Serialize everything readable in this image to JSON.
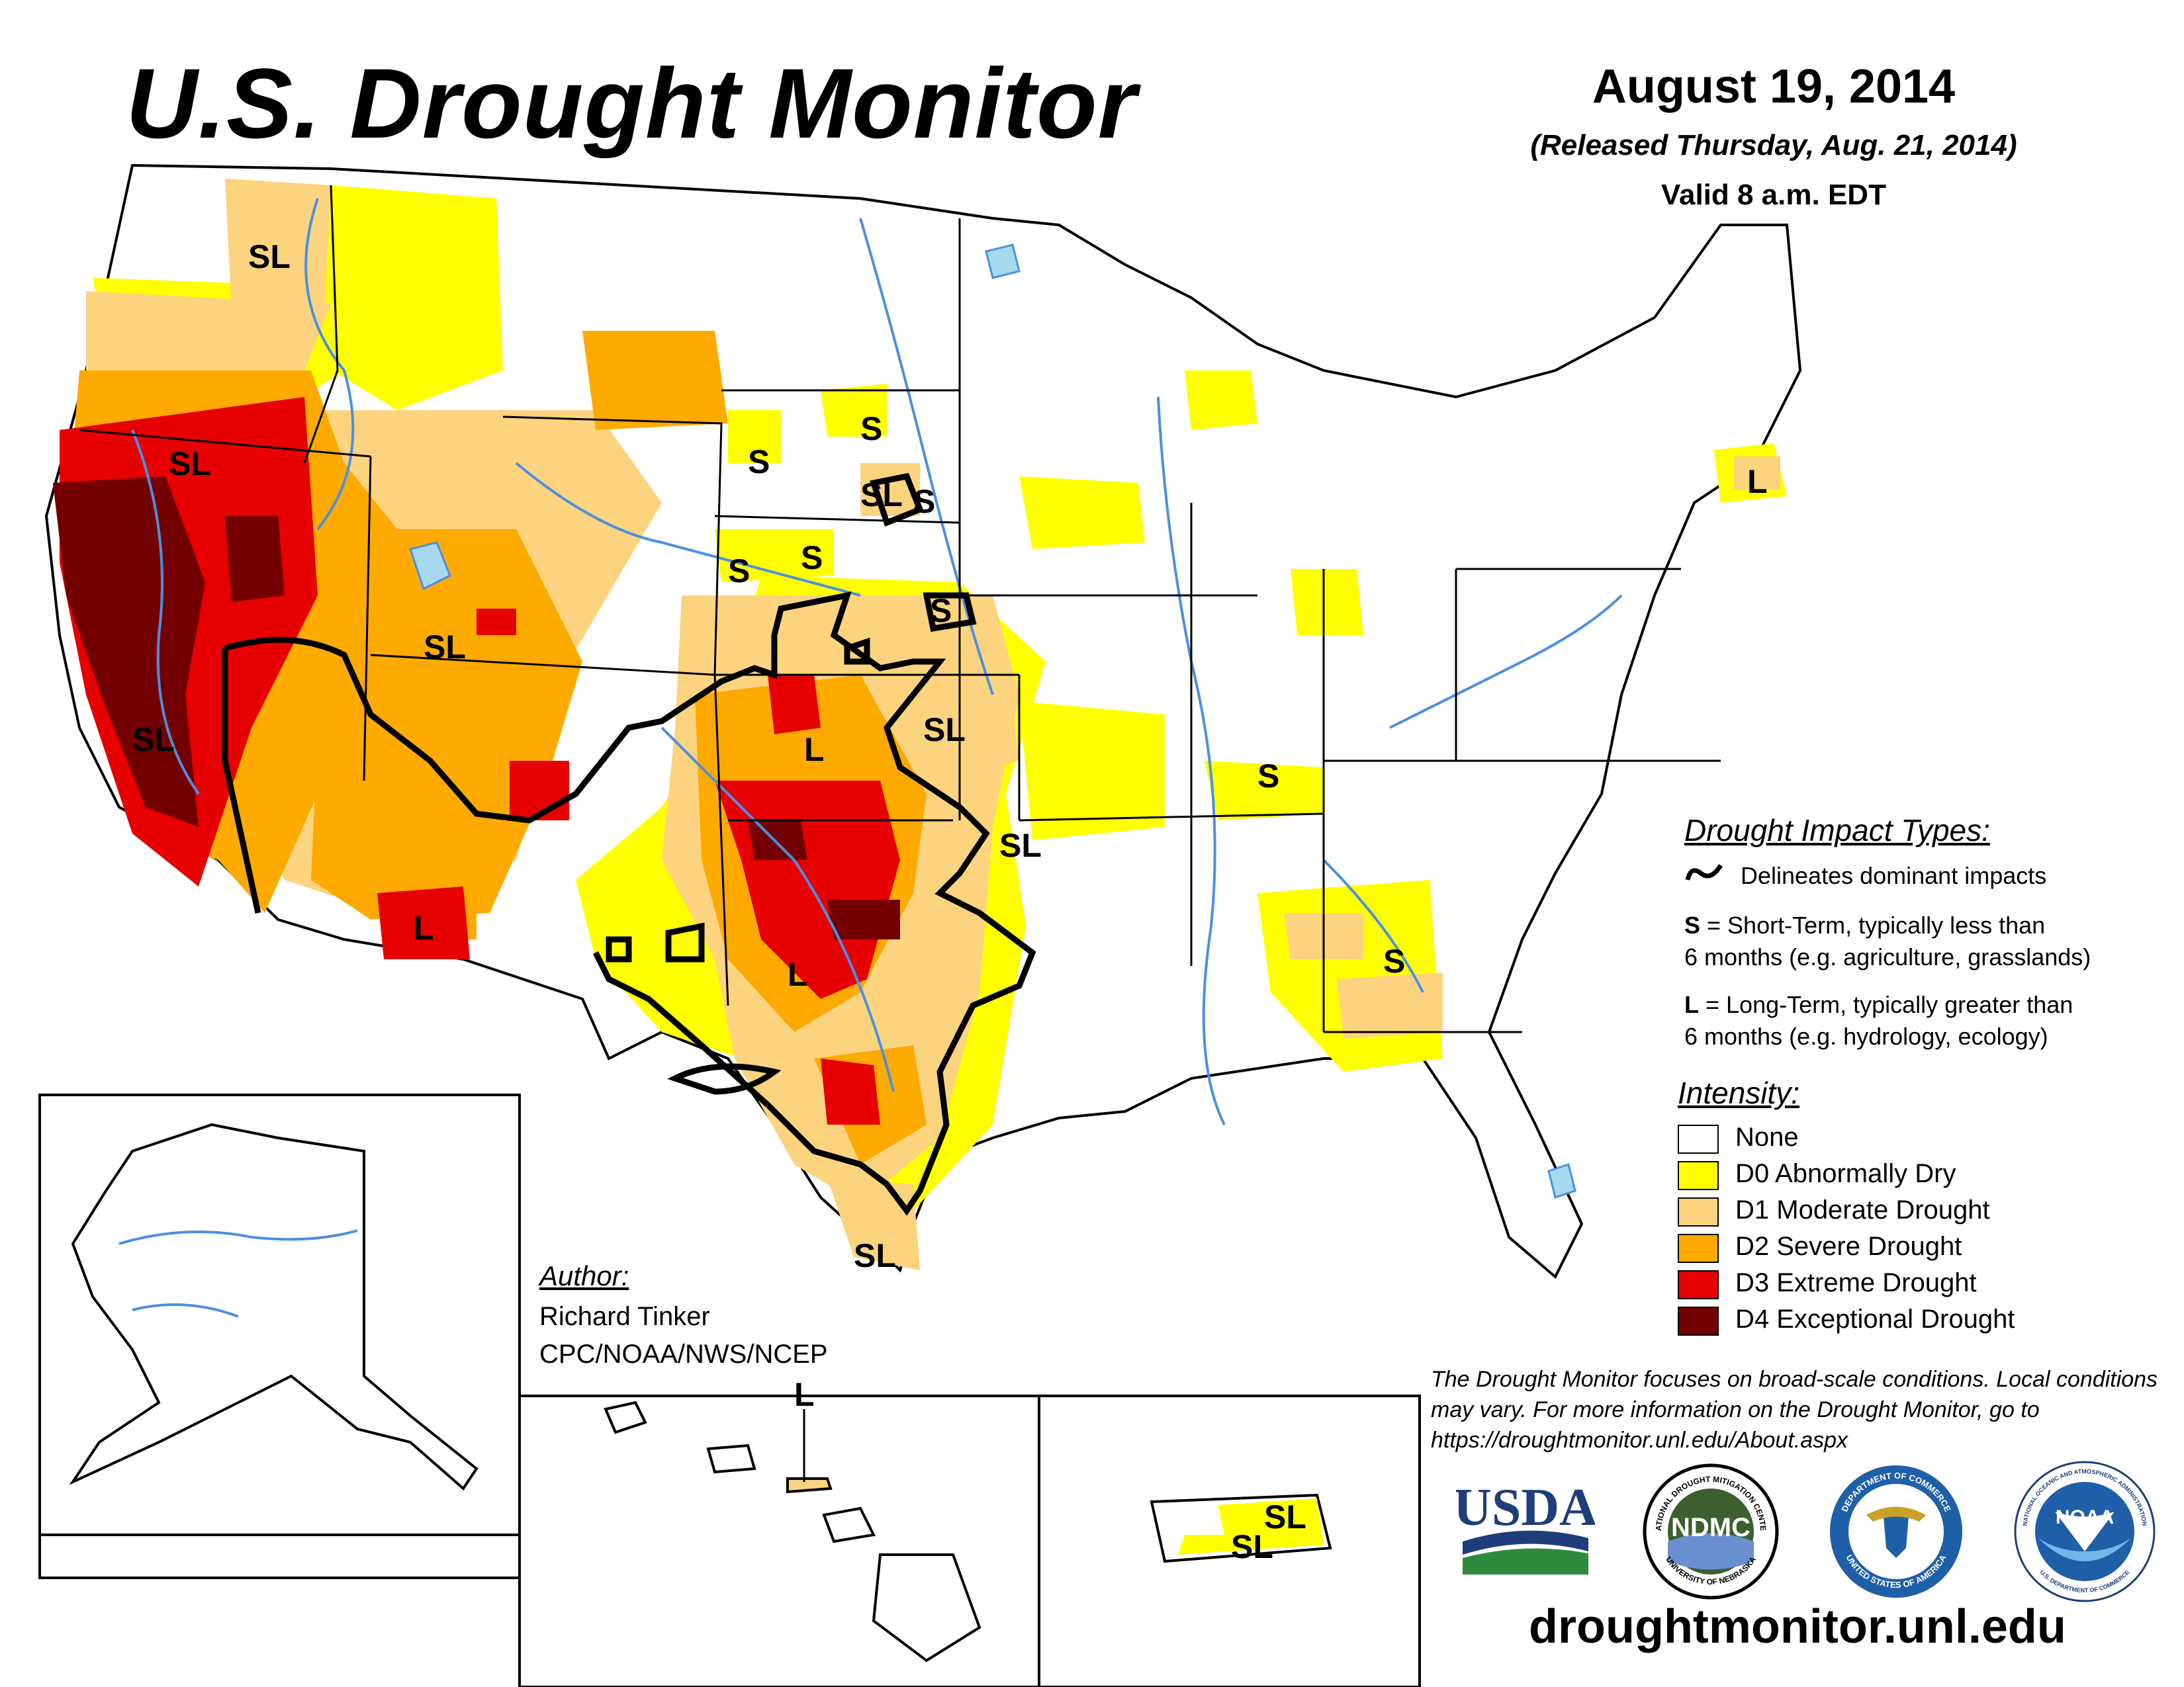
{
  "header": {
    "title": "U.S. Drought Monitor",
    "date": "August 19, 2014",
    "released": "(Released Thursday, Aug. 21, 2014)",
    "valid": "Valid 8 a.m. EDT"
  },
  "impacts": {
    "heading": "Drought Impact Types:",
    "delineates": "Delineates dominant impacts",
    "s_key": "S",
    "s_line1": " = Short-Term, typically less than",
    "s_line2": "6 months (e.g. agriculture, grasslands)",
    "l_key": "L",
    "l_line1": " = Long-Term, typically greater than",
    "l_line2": "6 months (e.g. hydrology, ecology)"
  },
  "intensity": {
    "heading": "Intensity:",
    "levels": [
      {
        "label": "None",
        "color": "#ffffff"
      },
      {
        "label": "D0 Abnormally Dry",
        "color": "#ffff00"
      },
      {
        "label": "D1 Moderate Drought",
        "color": "#fcd37f"
      },
      {
        "label": "D2 Severe Drought",
        "color": "#ffaa00"
      },
      {
        "label": "D3 Extreme Drought",
        "color": "#e60000"
      },
      {
        "label": "D4 Exceptional Drought",
        "color": "#730000"
      }
    ]
  },
  "author": {
    "heading": "Author:",
    "name": "Richard Tinker",
    "org": "CPC/NOAA/NWS/NCEP"
  },
  "disclaimer": "The Drought Monitor focuses on broad-scale conditions. Local conditions may vary. For more information on the Drought Monitor, go to https://droughtmonitor.unl.edu/About.aspx",
  "website": "droughtmonitor.unl.edu",
  "logos": {
    "usda": "USDA",
    "ndmc": "NDMC",
    "ndmc_ring_top": "NATIONAL DROUGHT MITIGATION CENTER",
    "ndmc_ring_bottom": "UNIVERSITY OF NEBRASKA",
    "commerce_ring_top": "DEPARTMENT OF COMMERCE",
    "commerce_ring_bottom": "UNITED STATES OF AMERICA",
    "noaa": "NOAA",
    "noaa_ring_top": "NATIONAL OCEANIC AND ATMOSPHERIC ADMINISTRATION",
    "noaa_ring_bottom": "U.S. DEPARTMENT OF COMMERCE"
  },
  "map_labels": {
    "sl": "SL",
    "s": "S",
    "l": "L"
  },
  "colors": {
    "water": "#4a90e2",
    "lakes": "#a6d8f0",
    "border": "#000000"
  }
}
